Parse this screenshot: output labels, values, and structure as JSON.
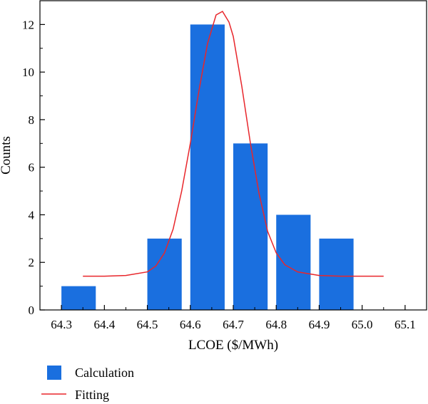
{
  "chart_data": {
    "type": "bar",
    "title": "",
    "xlabel": "LCOE ($/MWh)",
    "ylabel": "Counts",
    "xlim": [
      64.25,
      65.15
    ],
    "ylim": [
      0,
      13
    ],
    "x_ticks": [
      "64.3",
      "64.4",
      "64.5",
      "64.6",
      "64.7",
      "64.8",
      "64.9",
      "65.0",
      "65.1"
    ],
    "y_ticks": [
      "0",
      "2",
      "4",
      "6",
      "8",
      "10",
      "12"
    ],
    "grid": false,
    "legend_position": "bottom-left",
    "series": [
      {
        "name": "Calculation",
        "type": "bar",
        "color": "#1a6fdf",
        "bars": [
          {
            "start": 64.3,
            "end": 64.38,
            "count": 1
          },
          {
            "start": 64.5,
            "end": 64.58,
            "count": 3
          },
          {
            "start": 64.6,
            "end": 64.68,
            "count": 12
          },
          {
            "start": 64.7,
            "end": 64.78,
            "count": 7
          },
          {
            "start": 64.8,
            "end": 64.88,
            "count": 4
          },
          {
            "start": 64.9,
            "end": 64.98,
            "count": 3
          }
        ]
      },
      {
        "name": "Fitting",
        "type": "line",
        "color": "#e8262b",
        "points": [
          [
            64.35,
            1.42
          ],
          [
            64.4,
            1.42
          ],
          [
            64.45,
            1.45
          ],
          [
            64.5,
            1.6
          ],
          [
            64.52,
            1.85
          ],
          [
            64.54,
            2.4
          ],
          [
            64.56,
            3.4
          ],
          [
            64.58,
            5.0
          ],
          [
            64.6,
            7.0
          ],
          [
            64.62,
            9.2
          ],
          [
            64.64,
            11.2
          ],
          [
            64.66,
            12.4
          ],
          [
            64.675,
            12.55
          ],
          [
            64.69,
            12.1
          ],
          [
            64.7,
            11.5
          ],
          [
            64.72,
            9.4
          ],
          [
            64.74,
            7.0
          ],
          [
            64.76,
            4.9
          ],
          [
            64.78,
            3.3
          ],
          [
            64.8,
            2.4
          ],
          [
            64.82,
            1.9
          ],
          [
            64.85,
            1.6
          ],
          [
            64.9,
            1.45
          ],
          [
            64.95,
            1.42
          ],
          [
            65.0,
            1.42
          ],
          [
            65.05,
            1.42
          ]
        ]
      }
    ]
  }
}
